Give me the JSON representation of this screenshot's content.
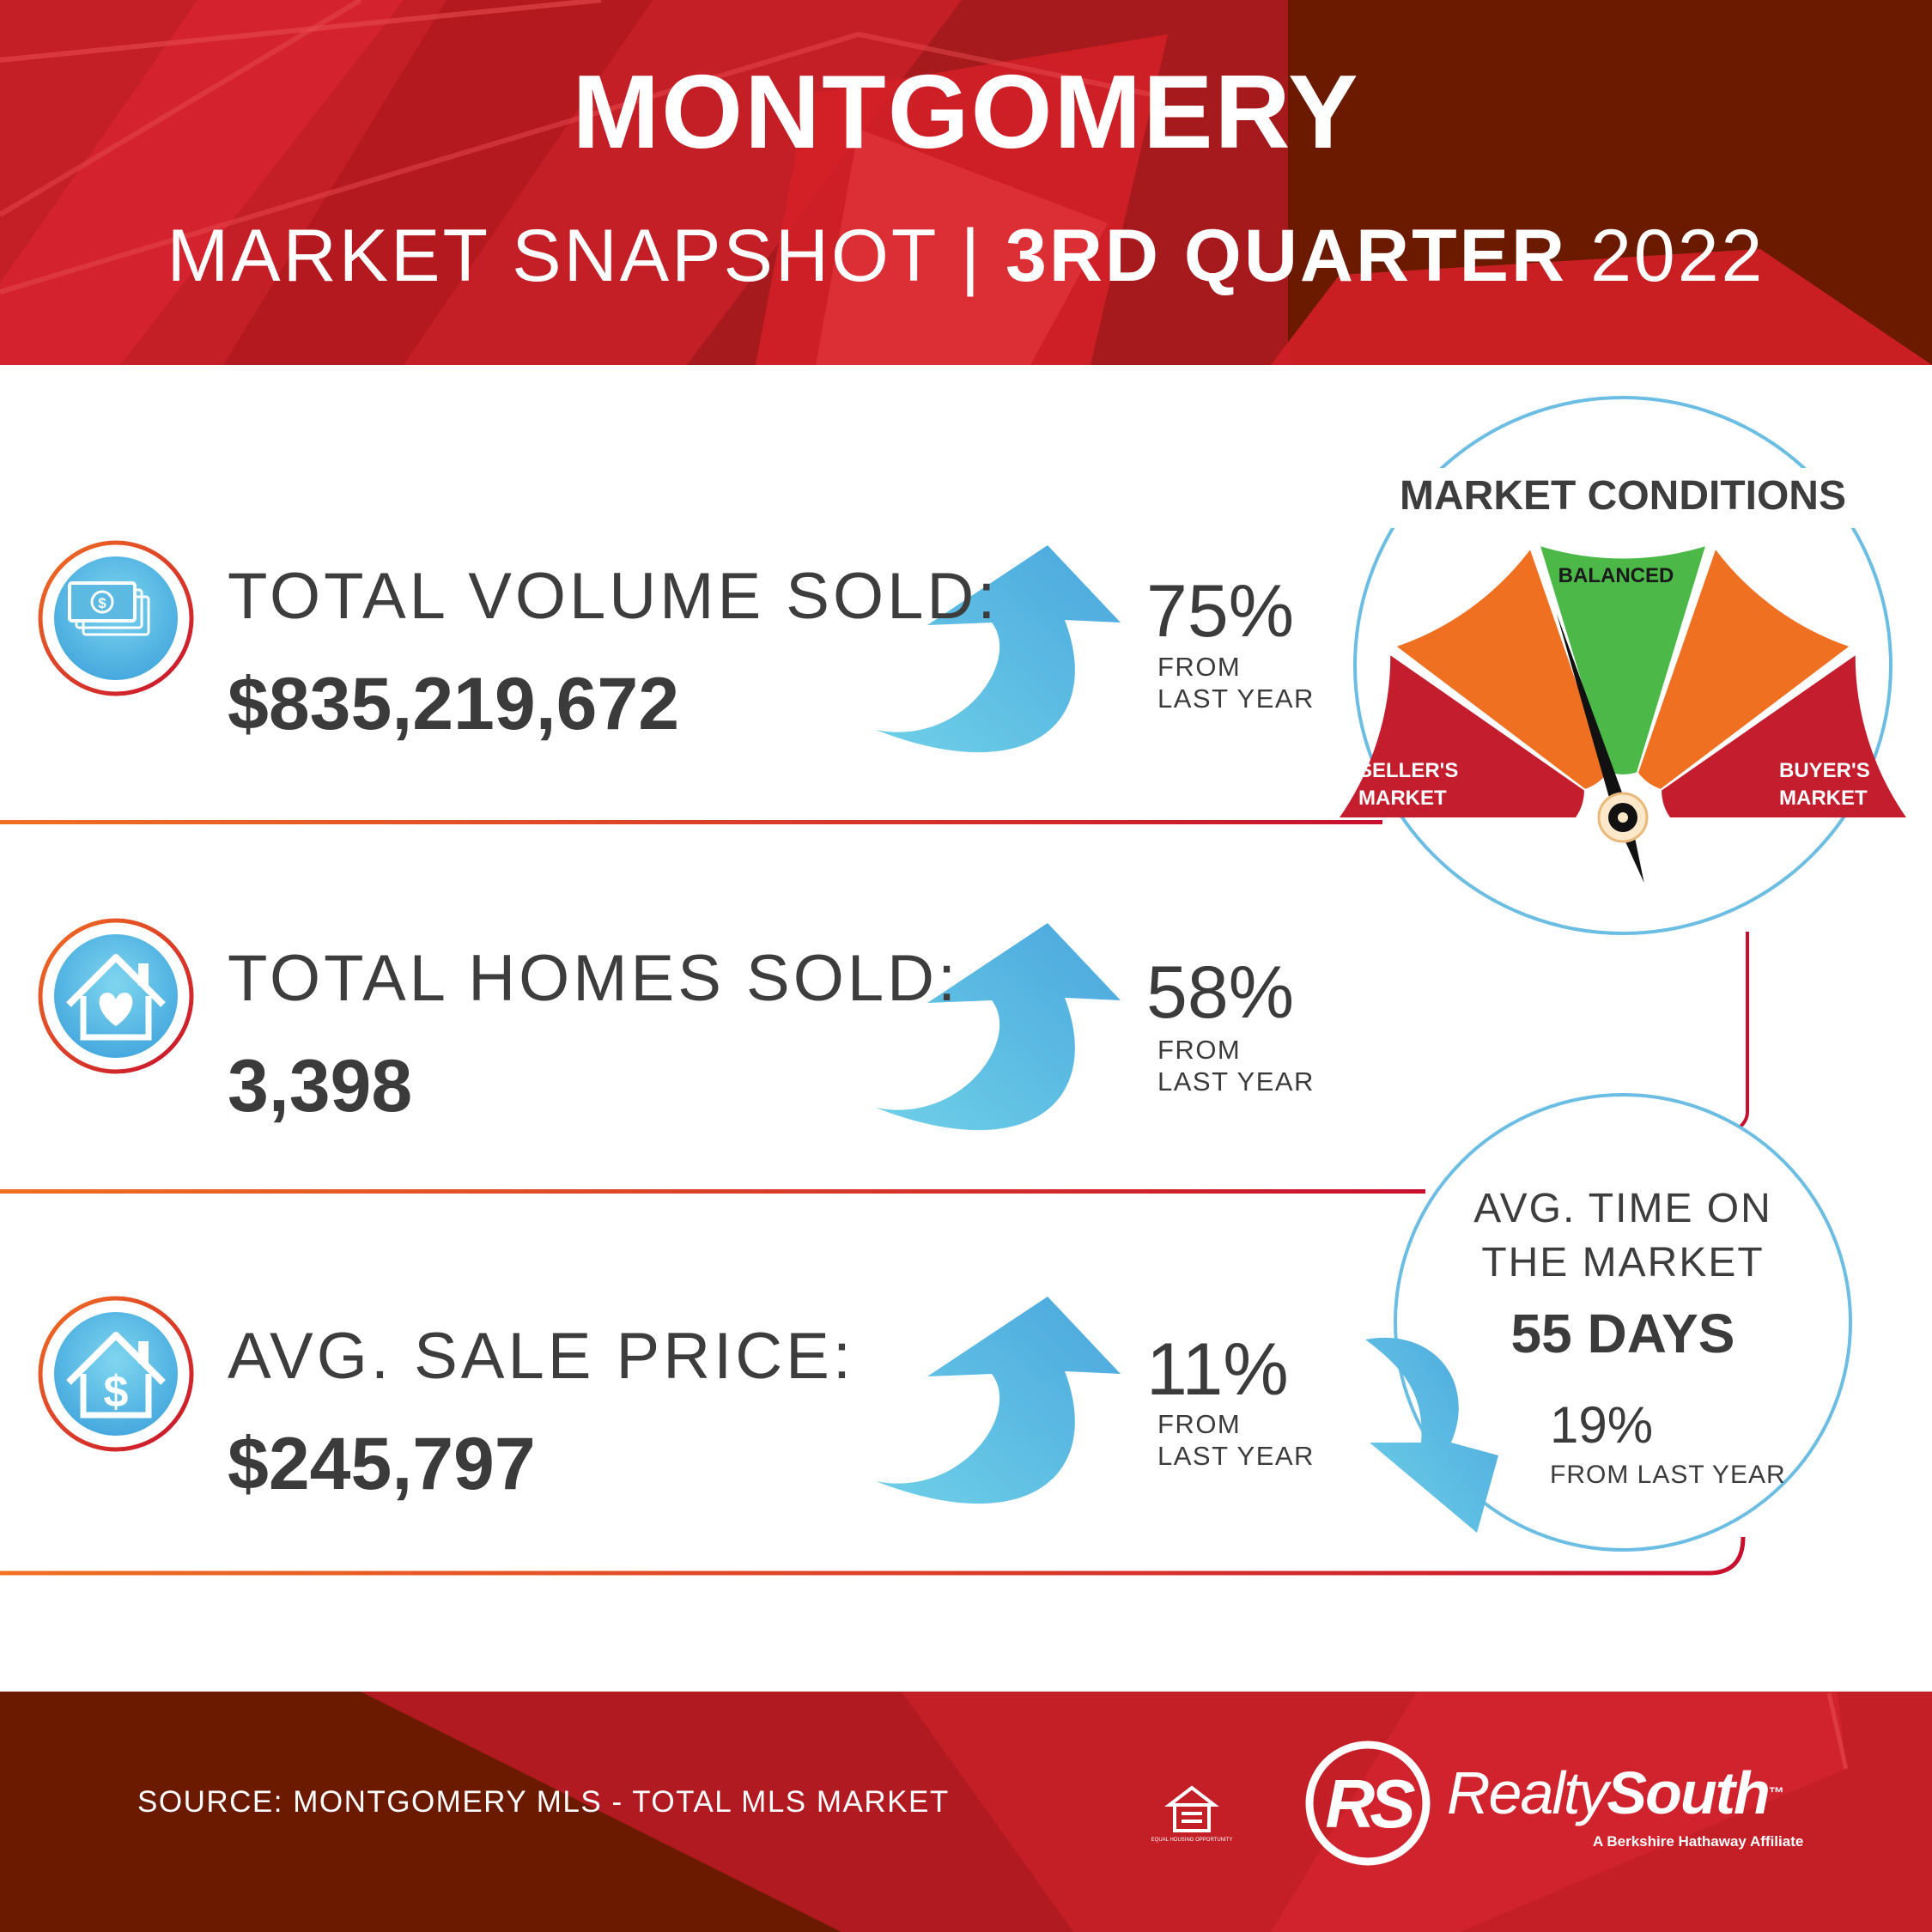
{
  "header": {
    "title": "MONTGOMERY",
    "subtitle_part1": "MARKET SNAPSHOT",
    "subtitle_sep": "|",
    "subtitle_part2": "3RD QUARTER",
    "subtitle_part3": "2022"
  },
  "metrics": [
    {
      "label": "TOTAL VOLUME SOLD:",
      "value": "$835,219,672",
      "change": "75%",
      "from": "FROM",
      "last_year": "LAST YEAR",
      "icon": "money-icon",
      "trend": "up"
    },
    {
      "label": "TOTAL HOMES SOLD:",
      "value": "3,398",
      "change": "58%",
      "from": "FROM",
      "last_year": "LAST YEAR",
      "icon": "house-heart-icon",
      "trend": "up"
    },
    {
      "label": "AVG. SALE PRICE:",
      "value": "$245,797",
      "change": "11%",
      "from": "FROM",
      "last_year": "LAST YEAR",
      "icon": "house-dollar-icon",
      "trend": "up"
    }
  ],
  "market_conditions": {
    "title": "MARKET CONDITIONS",
    "segments": {
      "left": [
        "SELLER'S",
        "MARKET"
      ],
      "center": "BALANCED",
      "right": [
        "BUYER'S",
        "MARKET"
      ]
    },
    "needle_level": 0.4
  },
  "time_on_market": {
    "label_line1": "AVG. TIME ON",
    "label_line2": "THE MARKET",
    "value": "55 DAYS",
    "change": "19%",
    "from": "FROM LAST YEAR",
    "trend": "down"
  },
  "footer": {
    "source": "SOURCE: MONTGOMERY MLS - TOTAL MLS MARKET",
    "logo_mark": "RS",
    "logo_light": "Realty",
    "logo_bold": "South",
    "logo_tm": "™",
    "logo_tagline": "A Berkshire Hathaway Affiliate",
    "eho_text": "EQUAL HOUSING OPPORTUNITY"
  },
  "colors": {
    "red": "#d42027",
    "dark_red": "#6b1a00",
    "orange": "#f07022",
    "green": "#4cb848",
    "arrow_blue": "#5bb9e2",
    "text": "#3b3b3b"
  }
}
